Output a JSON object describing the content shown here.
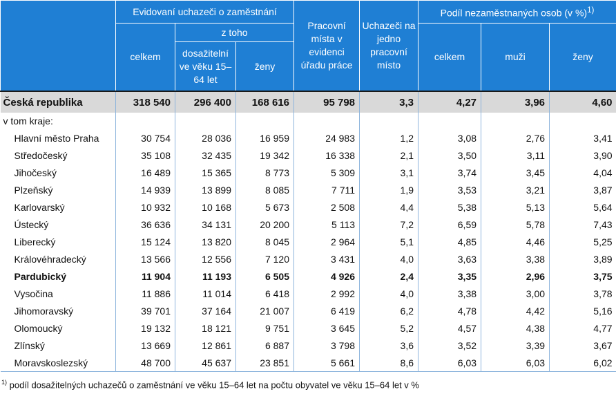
{
  "header": {
    "group1": "Evidovaní uchazeči o zaměstnání",
    "ztoho": "z toho",
    "celkem": "celkem",
    "dosazitelni": "dosažitelní ve věku 15–64 let",
    "zeny": "ženy",
    "pracovni_mista": "Pracovní místa v evidenci úřadu práce",
    "uchazeci_na_misto": "Uchazeči na jedno pracovní místo",
    "podil": "Podíl nezaměstnaných osob (v %)",
    "podil_note_mark": "1)",
    "podil_celkem": "celkem",
    "muzi": "muži",
    "podil_zeny": "ženy"
  },
  "total": {
    "label": "Česká republika",
    "values": [
      "318 540",
      "296 400",
      "168 616",
      "95 798",
      "3,3",
      "4,27",
      "3,96",
      "4,60"
    ]
  },
  "subheading": "v tom kraje:",
  "regions": [
    {
      "label": "Hlavní město Praha",
      "values": [
        "30 754",
        "28 036",
        "16 959",
        "24 983",
        "1,2",
        "3,08",
        "2,76",
        "3,41"
      ]
    },
    {
      "label": "Středočeský",
      "values": [
        "35 108",
        "32 435",
        "19 342",
        "16 338",
        "2,1",
        "3,50",
        "3,11",
        "3,90"
      ]
    },
    {
      "label": "Jihočeský",
      "values": [
        "16 489",
        "15 365",
        "8 773",
        "5 309",
        "3,1",
        "3,74",
        "3,45",
        "4,04"
      ]
    },
    {
      "label": "Plzeňský",
      "values": [
        "14 939",
        "13 899",
        "8 085",
        "7 711",
        "1,9",
        "3,53",
        "3,21",
        "3,87"
      ]
    },
    {
      "label": "Karlovarský",
      "values": [
        "10 932",
        "10 168",
        "5 673",
        "2 508",
        "4,4",
        "5,38",
        "5,13",
        "5,64"
      ]
    },
    {
      "label": "Ústecký",
      "values": [
        "36 636",
        "34 131",
        "20 200",
        "5 113",
        "7,2",
        "6,59",
        "5,78",
        "7,43"
      ]
    },
    {
      "label": "Liberecký",
      "values": [
        "15 124",
        "13 820",
        "8 045",
        "2 964",
        "5,1",
        "4,85",
        "4,46",
        "5,25"
      ]
    },
    {
      "label": "Královéhradecký",
      "values": [
        "13 566",
        "12 556",
        "7 120",
        "3 431",
        "4,0",
        "3,63",
        "3,38",
        "3,89"
      ]
    },
    {
      "label": "Pardubický",
      "values": [
        "11 904",
        "11 193",
        "6 505",
        "4 926",
        "2,4",
        "3,35",
        "2,96",
        "3,75"
      ]
    },
    {
      "label": "Vysočina",
      "values": [
        "11 886",
        "11 014",
        "6 418",
        "2 992",
        "4,0",
        "3,38",
        "3,00",
        "3,78"
      ]
    },
    {
      "label": "Jihomoravský",
      "values": [
        "39 701",
        "37 164",
        "21 007",
        "6 419",
        "6,2",
        "4,78",
        "4,42",
        "5,16"
      ]
    },
    {
      "label": "Olomoucký",
      "values": [
        "19 132",
        "18 121",
        "9 751",
        "3 645",
        "5,2",
        "4,57",
        "4,38",
        "4,77"
      ]
    },
    {
      "label": "Zlínský",
      "values": [
        "13 669",
        "12 861",
        "6 887",
        "3 798",
        "3,6",
        "3,52",
        "3,39",
        "3,67"
      ]
    },
    {
      "label": "Moravskoslezský",
      "values": [
        "48 700",
        "45 637",
        "23 851",
        "5 661",
        "8,6",
        "6,03",
        "6,03",
        "6,02"
      ]
    }
  ],
  "footnote": {
    "mark": "1)",
    "text": "podíl dosažitelných uchazečů o zaměstnání ve věku 15–64 let na počtu obyvatel ve věku 15–64 let v %"
  }
}
